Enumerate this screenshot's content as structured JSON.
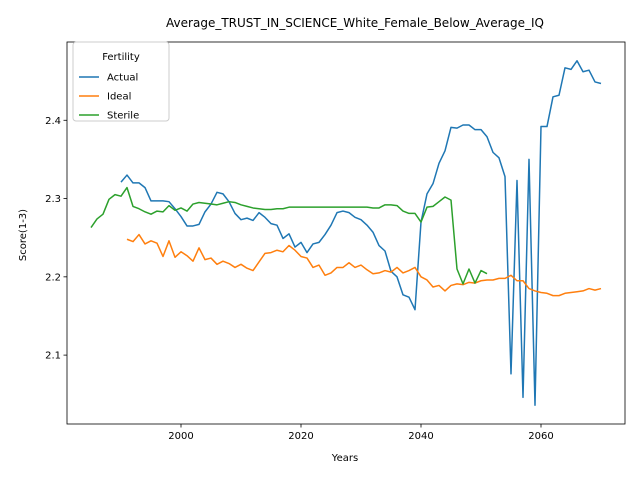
{
  "chart_data": {
    "type": "line",
    "title": "Average_TRUST_IN_SCIENCE_White_Female_Below_Average_IQ",
    "xlabel": "Years",
    "ylabel": "Score(1-3)",
    "xlim": [
      1981,
      2074
    ],
    "ylim": [
      2.012,
      2.5
    ],
    "xticks": [
      2000,
      2020,
      2040,
      2060
    ],
    "yticks": [
      2.1,
      2.2,
      2.3,
      2.4
    ],
    "grid": false,
    "legend": {
      "title": "Fertility",
      "placement": "top-left"
    },
    "series": [
      {
        "name": "Actual",
        "color": "#1f77b4",
        "points": [
          [
            1990,
            2.321
          ],
          [
            1991,
            2.33
          ],
          [
            1992,
            2.32
          ],
          [
            1993,
            2.32
          ],
          [
            1994,
            2.314
          ],
          [
            1995,
            2.297
          ],
          [
            1996,
            2.297
          ],
          [
            1997,
            2.297
          ],
          [
            1998,
            2.296
          ],
          [
            1999,
            2.287
          ],
          [
            2000,
            2.277
          ],
          [
            2001,
            2.265
          ],
          [
            2002,
            2.265
          ],
          [
            2003,
            2.267
          ],
          [
            2004,
            2.283
          ],
          [
            2005,
            2.293
          ],
          [
            2006,
            2.308
          ],
          [
            2007,
            2.306
          ],
          [
            2008,
            2.296
          ],
          [
            2009,
            2.281
          ],
          [
            2010,
            2.273
          ],
          [
            2011,
            2.275
          ],
          [
            2012,
            2.272
          ],
          [
            2013,
            2.282
          ],
          [
            2014,
            2.276
          ],
          [
            2015,
            2.268
          ],
          [
            2016,
            2.266
          ],
          [
            2017,
            2.249
          ],
          [
            2018,
            2.255
          ],
          [
            2019,
            2.238
          ],
          [
            2020,
            2.244
          ],
          [
            2021,
            2.231
          ],
          [
            2022,
            2.242
          ],
          [
            2023,
            2.244
          ],
          [
            2024,
            2.254
          ],
          [
            2025,
            2.266
          ],
          [
            2026,
            2.282
          ],
          [
            2027,
            2.284
          ],
          [
            2028,
            2.282
          ],
          [
            2029,
            2.276
          ],
          [
            2030,
            2.273
          ],
          [
            2031,
            2.266
          ],
          [
            2032,
            2.257
          ],
          [
            2033,
            2.24
          ],
          [
            2034,
            2.233
          ],
          [
            2035,
            2.207
          ],
          [
            2036,
            2.2
          ],
          [
            2037,
            2.177
          ],
          [
            2038,
            2.174
          ],
          [
            2039,
            2.158
          ],
          [
            2040,
            2.27
          ],
          [
            2041,
            2.306
          ],
          [
            2042,
            2.319
          ],
          [
            2043,
            2.345
          ],
          [
            2044,
            2.361
          ],
          [
            2045,
            2.391
          ],
          [
            2046,
            2.39
          ],
          [
            2047,
            2.394
          ],
          [
            2048,
            2.394
          ],
          [
            2049,
            2.388
          ],
          [
            2050,
            2.388
          ],
          [
            2051,
            2.379
          ],
          [
            2052,
            2.359
          ],
          [
            2053,
            2.352
          ],
          [
            2054,
            2.328
          ],
          [
            2055,
            2.076
          ],
          [
            2056,
            2.323
          ],
          [
            2057,
            2.046
          ],
          [
            2058,
            2.35
          ],
          [
            2059,
            2.036
          ],
          [
            2060,
            2.392
          ],
          [
            2061,
            2.392
          ],
          [
            2062,
            2.43
          ],
          [
            2063,
            2.432
          ],
          [
            2064,
            2.467
          ],
          [
            2065,
            2.465
          ],
          [
            2066,
            2.476
          ],
          [
            2067,
            2.462
          ],
          [
            2068,
            2.464
          ],
          [
            2069,
            2.449
          ],
          [
            2070,
            2.447
          ]
        ]
      },
      {
        "name": "Ideal",
        "color": "#ff7f0e",
        "points": [
          [
            1991,
            2.248
          ],
          [
            1992,
            2.245
          ],
          [
            1993,
            2.254
          ],
          [
            1994,
            2.242
          ],
          [
            1995,
            2.246
          ],
          [
            1996,
            2.243
          ],
          [
            1997,
            2.226
          ],
          [
            1998,
            2.246
          ],
          [
            1999,
            2.225
          ],
          [
            2000,
            2.232
          ],
          [
            2001,
            2.227
          ],
          [
            2002,
            2.22
          ],
          [
            2003,
            2.237
          ],
          [
            2004,
            2.222
          ],
          [
            2005,
            2.224
          ],
          [
            2006,
            2.216
          ],
          [
            2007,
            2.22
          ],
          [
            2008,
            2.217
          ],
          [
            2009,
            2.212
          ],
          [
            2010,
            2.216
          ],
          [
            2011,
            2.211
          ],
          [
            2012,
            2.208
          ],
          [
            2013,
            2.219
          ],
          [
            2014,
            2.23
          ],
          [
            2015,
            2.231
          ],
          [
            2016,
            2.234
          ],
          [
            2017,
            2.232
          ],
          [
            2018,
            2.24
          ],
          [
            2019,
            2.234
          ],
          [
            2020,
            2.226
          ],
          [
            2021,
            2.224
          ],
          [
            2022,
            2.212
          ],
          [
            2023,
            2.215
          ],
          [
            2024,
            2.202
          ],
          [
            2025,
            2.205
          ],
          [
            2026,
            2.212
          ],
          [
            2027,
            2.212
          ],
          [
            2028,
            2.218
          ],
          [
            2029,
            2.212
          ],
          [
            2030,
            2.215
          ],
          [
            2031,
            2.209
          ],
          [
            2032,
            2.204
          ],
          [
            2033,
            2.205
          ],
          [
            2034,
            2.208
          ],
          [
            2035,
            2.206
          ],
          [
            2036,
            2.212
          ],
          [
            2037,
            2.205
          ],
          [
            2038,
            2.208
          ],
          [
            2039,
            2.212
          ],
          [
            2040,
            2.2
          ],
          [
            2041,
            2.196
          ],
          [
            2042,
            2.187
          ],
          [
            2043,
            2.189
          ],
          [
            2044,
            2.182
          ],
          [
            2045,
            2.189
          ],
          [
            2046,
            2.191
          ],
          [
            2047,
            2.19
          ],
          [
            2048,
            2.193
          ],
          [
            2049,
            2.192
          ],
          [
            2050,
            2.195
          ],
          [
            2051,
            2.196
          ],
          [
            2052,
            2.196
          ],
          [
            2053,
            2.198
          ],
          [
            2054,
            2.198
          ],
          [
            2055,
            2.202
          ],
          [
            2056,
            2.195
          ],
          [
            2057,
            2.195
          ],
          [
            2058,
            2.185
          ],
          [
            2059,
            2.182
          ],
          [
            2060,
            2.18
          ],
          [
            2061,
            2.179
          ],
          [
            2062,
            2.176
          ],
          [
            2063,
            2.176
          ],
          [
            2064,
            2.179
          ],
          [
            2065,
            2.18
          ],
          [
            2066,
            2.181
          ],
          [
            2067,
            2.182
          ],
          [
            2068,
            2.185
          ],
          [
            2069,
            2.183
          ],
          [
            2070,
            2.185
          ]
        ]
      },
      {
        "name": "Sterile",
        "color": "#2ca02c",
        "points": [
          [
            1985,
            2.263
          ],
          [
            1986,
            2.274
          ],
          [
            1987,
            2.28
          ],
          [
            1988,
            2.299
          ],
          [
            1989,
            2.305
          ],
          [
            1990,
            2.303
          ],
          [
            1991,
            2.314
          ],
          [
            1992,
            2.29
          ],
          [
            1993,
            2.287
          ],
          [
            1994,
            2.283
          ],
          [
            1995,
            2.28
          ],
          [
            1996,
            2.284
          ],
          [
            1997,
            2.283
          ],
          [
            1998,
            2.291
          ],
          [
            1999,
            2.285
          ],
          [
            2000,
            2.288
          ],
          [
            2001,
            2.284
          ],
          [
            2002,
            2.293
          ],
          [
            2003,
            2.295
          ],
          [
            2004,
            2.294
          ],
          [
            2005,
            2.293
          ],
          [
            2006,
            2.292
          ],
          [
            2007,
            2.294
          ],
          [
            2008,
            2.296
          ],
          [
            2009,
            2.295
          ],
          [
            2010,
            2.292
          ],
          [
            2011,
            2.29
          ],
          [
            2012,
            2.288
          ],
          [
            2013,
            2.287
          ],
          [
            2014,
            2.286
          ],
          [
            2015,
            2.286
          ],
          [
            2016,
            2.287
          ],
          [
            2017,
            2.287
          ],
          [
            2018,
            2.289
          ],
          [
            2019,
            2.289
          ],
          [
            2020,
            2.289
          ],
          [
            2021,
            2.289
          ],
          [
            2022,
            2.289
          ],
          [
            2023,
            2.289
          ],
          [
            2024,
            2.289
          ],
          [
            2025,
            2.289
          ],
          [
            2026,
            2.289
          ],
          [
            2027,
            2.289
          ],
          [
            2028,
            2.289
          ],
          [
            2029,
            2.289
          ],
          [
            2030,
            2.289
          ],
          [
            2031,
            2.289
          ],
          [
            2032,
            2.288
          ],
          [
            2033,
            2.288
          ],
          [
            2034,
            2.292
          ],
          [
            2035,
            2.292
          ],
          [
            2036,
            2.291
          ],
          [
            2037,
            2.284
          ],
          [
            2038,
            2.281
          ],
          [
            2039,
            2.281
          ],
          [
            2040,
            2.27
          ],
          [
            2041,
            2.289
          ],
          [
            2042,
            2.29
          ],
          [
            2043,
            2.296
          ],
          [
            2044,
            2.302
          ],
          [
            2045,
            2.298
          ],
          [
            2046,
            2.21
          ],
          [
            2047,
            2.191
          ],
          [
            2048,
            2.21
          ],
          [
            2049,
            2.192
          ],
          [
            2050,
            2.208
          ],
          [
            2051,
            2.204
          ]
        ]
      }
    ]
  }
}
